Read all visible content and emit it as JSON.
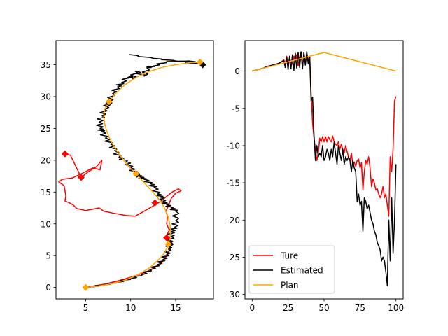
{
  "chart_data": [
    {
      "type": "line",
      "title": "",
      "xlabel": "",
      "ylabel": "",
      "xlim": [
        1.7,
        19.2
      ],
      "ylim": [
        -1.8,
        38.8
      ],
      "xticks": [
        5,
        10,
        15
      ],
      "yticks": [
        0,
        5,
        10,
        15,
        20,
        25,
        30,
        35
      ],
      "grid": false,
      "legend": "none",
      "series": [
        {
          "color": "#ff0000",
          "points": [
            [
              2.7,
              21.0
            ],
            [
              3.3,
              20.8
            ],
            [
              4.5,
              17.3
            ],
            [
              5.3,
              18.2
            ],
            [
              6.2,
              19.0
            ],
            [
              6.8,
              20.0
            ],
            [
              6.6,
              18.5
            ],
            [
              5.8,
              18.8
            ],
            [
              4.7,
              18.0
            ],
            [
              3.5,
              17.2
            ],
            [
              2.4,
              17.0
            ],
            [
              2.0,
              16.6
            ],
            [
              2.6,
              16.0
            ],
            [
              2.8,
              14.4
            ],
            [
              2.7,
              13.6
            ],
            [
              3.2,
              13.3
            ],
            [
              3.6,
              13.0
            ],
            [
              4.0,
              12.4
            ],
            [
              5.0,
              12.1
            ],
            [
              6.5,
              12.5
            ],
            [
              7.0,
              12.0
            ],
            [
              8.0,
              11.7
            ],
            [
              9.5,
              11.3
            ],
            [
              10.5,
              11.2
            ],
            [
              11.5,
              12.0
            ],
            [
              12.5,
              12.8
            ],
            [
              13.3,
              13.5
            ],
            [
              13.9,
              14.2
            ],
            [
              14.6,
              15.0
            ],
            [
              15.3,
              15.5
            ],
            [
              15.6,
              15.2
            ],
            [
              15.0,
              14.8
            ],
            [
              14.5,
              14.0
            ],
            [
              14.2,
              12.8
            ],
            [
              13.9,
              12.0
            ],
            [
              14.1,
              11.2
            ],
            [
              14.0,
              10.0
            ],
            [
              14.3,
              9.0
            ],
            [
              13.9,
              8.0
            ],
            [
              14.2,
              7.0
            ],
            [
              14.4,
              6.0
            ],
            [
              14.0,
              5.0
            ],
            [
              13.5,
              4.0
            ],
            [
              12.5,
              3.0
            ],
            [
              11.5,
              2.3
            ],
            [
              10.0,
              1.6
            ],
            [
              8.5,
              1.0
            ],
            [
              7.0,
              0.5
            ],
            [
              5.8,
              0.2
            ],
            [
              5.0,
              0.0
            ]
          ]
        },
        {
          "color": "#000000",
          "points": [
            [
              9.8,
              36.6
            ],
            [
              12.5,
              36.0
            ],
            [
              15.0,
              35.6
            ],
            [
              18.0,
              35.0
            ],
            [
              16.5,
              35.6
            ],
            [
              14.0,
              35.5
            ],
            [
              12.5,
              34.8
            ],
            [
              11.8,
              34.5
            ],
            [
              11.5,
              33.2
            ],
            [
              10.5,
              34.0
            ],
            [
              10.2,
              32.8
            ],
            [
              9.8,
              33.2
            ],
            [
              9.0,
              32.2
            ],
            [
              8.5,
              31.5
            ],
            [
              8.0,
              30.5
            ],
            [
              7.6,
              29.2
            ],
            [
              7.1,
              28.0
            ],
            [
              6.8,
              27.0
            ],
            [
              6.5,
              26.0
            ],
            [
              6.6,
              25.0
            ],
            [
              6.8,
              24.5
            ],
            [
              7.2,
              23.5
            ],
            [
              7.8,
              22.5
            ],
            [
              8.2,
              21.5
            ],
            [
              8.7,
              20.5
            ],
            [
              9.5,
              19.8
            ],
            [
              10.0,
              18.8
            ],
            [
              10.5,
              18.0
            ],
            [
              11.0,
              17.4
            ],
            [
              11.5,
              17.0
            ],
            [
              12.2,
              16.3
            ],
            [
              12.6,
              15.7
            ],
            [
              13.0,
              14.7
            ],
            [
              13.3,
              14.2
            ],
            [
              13.6,
              13.5
            ],
            [
              14.0,
              13.0
            ],
            [
              14.5,
              12.5
            ],
            [
              15.0,
              12.0
            ],
            [
              15.0,
              10.5
            ],
            [
              14.9,
              9.5
            ],
            [
              14.5,
              8.8
            ],
            [
              14.5,
              8.0
            ],
            [
              14.3,
              7.0
            ],
            [
              14.2,
              6.0
            ],
            [
              14.0,
              5.2
            ],
            [
              13.6,
              4.4
            ],
            [
              13.0,
              3.6
            ],
            [
              12.2,
              2.8
            ],
            [
              11.2,
              2.0
            ],
            [
              10.0,
              1.4
            ],
            [
              8.5,
              0.8
            ],
            [
              7.0,
              0.4
            ],
            [
              5.8,
              0.15
            ],
            [
              5.0,
              0.0
            ]
          ],
          "jitter": 0.35
        },
        {
          "color": "#ffa500",
          "points": [
            [
              5.0,
              0.0
            ],
            [
              6.5,
              0.25
            ],
            [
              8.0,
              0.6
            ],
            [
              9.5,
              1.2
            ],
            [
              10.8,
              2.0
            ],
            [
              12.0,
              3.0
            ],
            [
              13.0,
              4.2
            ],
            [
              13.8,
              5.5
            ],
            [
              14.2,
              6.8
            ],
            [
              14.4,
              8.2
            ],
            [
              14.4,
              9.6
            ],
            [
              14.2,
              11.0
            ],
            [
              13.8,
              12.4
            ],
            [
              13.3,
              13.6
            ],
            [
              12.6,
              14.8
            ],
            [
              11.8,
              16.0
            ],
            [
              10.6,
              17.9
            ],
            [
              9.8,
              19.0
            ],
            [
              9.0,
              20.4
            ],
            [
              8.2,
              22.0
            ],
            [
              7.6,
              23.6
            ],
            [
              7.2,
              25.2
            ],
            [
              7.0,
              26.8
            ],
            [
              7.1,
              28.0
            ],
            [
              7.6,
              29.2
            ],
            [
              8.4,
              30.6
            ],
            [
              9.4,
              31.9
            ],
            [
              10.6,
              33.0
            ],
            [
              12.0,
              33.9
            ],
            [
              13.5,
              34.6
            ],
            [
              15.0,
              35.0
            ],
            [
              16.5,
              35.3
            ],
            [
              17.7,
              35.4
            ]
          ]
        }
      ],
      "markers": [
        {
          "color": "#ff0000",
          "points": [
            [
              2.7,
              21.0
            ],
            [
              4.5,
              17.3
            ],
            [
              12.7,
              13.3
            ],
            [
              14.0,
              7.8
            ]
          ]
        },
        {
          "color": "#000000",
          "points": [
            [
              18.0,
              35.0
            ],
            [
              7.6,
              29.0
            ],
            [
              10.7,
              17.8
            ],
            [
              14.4,
              6.8
            ]
          ]
        },
        {
          "color": "#ffa500",
          "points": [
            [
              5.0,
              0.0
            ],
            [
              14.2,
              6.8
            ],
            [
              10.6,
              17.9
            ],
            [
              7.6,
              29.2
            ],
            [
              17.7,
              35.4
            ]
          ]
        }
      ]
    },
    {
      "type": "line",
      "title": "",
      "xlabel": "",
      "ylabel": "",
      "xlim": [
        -5,
        105
      ],
      "ylim": [
        -30.6,
        4.1
      ],
      "xticks": [
        0,
        25,
        50,
        75,
        100
      ],
      "yticks": [
        -30,
        -25,
        -20,
        -15,
        -10,
        -5,
        0
      ],
      "grid": false,
      "legend": "lower-left",
      "series": [
        {
          "name": "Ture",
          "color": "#ff0000",
          "x": [
            0,
            2,
            4,
            6,
            8,
            10,
            12,
            14,
            16,
            18,
            20,
            22,
            23,
            24,
            25,
            26,
            27,
            28,
            29,
            30,
            31,
            32,
            33,
            34,
            35,
            36,
            37,
            38,
            39,
            40,
            41,
            42,
            43,
            44,
            45,
            46,
            47,
            48,
            49,
            50,
            51,
            52,
            53,
            54,
            55,
            56,
            57,
            58,
            59,
            60,
            61,
            62,
            63,
            64,
            65,
            66,
            67,
            68,
            69,
            70,
            71,
            72,
            73,
            74,
            75,
            76,
            77,
            78,
            79,
            80,
            81,
            82,
            83,
            84,
            85,
            86,
            87,
            88,
            89,
            90,
            91,
            92,
            93,
            94,
            95,
            96,
            97,
            98,
            99,
            100
          ],
          "y": [
            0,
            0.1,
            0.2,
            0.3,
            0.4,
            0.6,
            0.7,
            0.8,
            0.9,
            1.0,
            1.2,
            1.5,
            1.0,
            2.0,
            0.8,
            1.7,
            1.3,
            0.9,
            2.0,
            1.2,
            2.2,
            0.7,
            1.8,
            2.4,
            0.6,
            2.5,
            1.0,
            2.3,
            1.5,
            2.0,
            -3.0,
            -7.0,
            -9.0,
            -10.5,
            -12.0,
            -11.0,
            -9.0,
            -9.5,
            -8.8,
            -9.5,
            -8.8,
            -9.5,
            -8.8,
            -9.2,
            -9.5,
            -8.7,
            -9.5,
            -9.8,
            -10.0,
            -9.5,
            -10.5,
            -9.8,
            -10.5,
            -11.0,
            -10.0,
            -10.8,
            -11.5,
            -12.0,
            -11.0,
            -12.5,
            -12.2,
            -12.8,
            -12.0,
            -11.8,
            -13.0,
            -12.3,
            -16.0,
            -13.5,
            -12.0,
            -12.5,
            -11.5,
            -13.0,
            -15.5,
            -14.5,
            -15.0,
            -16.0,
            -15.8,
            -16.5,
            -17.0,
            -16.5,
            -15.5,
            -17.0,
            -16.5,
            -18.0,
            -19.5,
            -11.5,
            -13.5,
            -10.5,
            -4.0,
            -3.4
          ]
        },
        {
          "name": "Estimated",
          "color": "#000000",
          "x": [
            0,
            2,
            4,
            6,
            8,
            10,
            12,
            14,
            16,
            18,
            20,
            22,
            23,
            24,
            25,
            26,
            27,
            28,
            29,
            30,
            31,
            32,
            33,
            34,
            35,
            36,
            37,
            38,
            39,
            40,
            41,
            42,
            43,
            44,
            45,
            46,
            47,
            48,
            49,
            50,
            51,
            52,
            53,
            54,
            55,
            56,
            57,
            58,
            59,
            60,
            61,
            62,
            63,
            64,
            65,
            66,
            67,
            68,
            69,
            70,
            71,
            72,
            73,
            74,
            75,
            76,
            77,
            78,
            79,
            80,
            81,
            82,
            83,
            84,
            85,
            86,
            87,
            88,
            89,
            90,
            91,
            92,
            93,
            94,
            95,
            96,
            97,
            98,
            99,
            100
          ],
          "y": [
            0,
            0.1,
            0.2,
            0.3,
            0.4,
            0.6,
            0.7,
            0.8,
            0.9,
            1.0,
            1.2,
            1.4,
            0.5,
            1.8,
            0.2,
            2.0,
            0.3,
            2.2,
            0.1,
            2.4,
            0.4,
            2.5,
            0.5,
            2.6,
            0.3,
            2.5,
            0.8,
            2.6,
            1.0,
            2.0,
            -4.0,
            -3.5,
            -8.5,
            -12.0,
            -10.0,
            -11.5,
            -11.0,
            -11.5,
            -10.0,
            -12.0,
            -11.5,
            -10.5,
            -11.0,
            -12.0,
            -10.5,
            -11.5,
            -9.5,
            -11.0,
            -12.5,
            -10.0,
            -11.0,
            -12.0,
            -10.5,
            -12.5,
            -11.5,
            -12.0,
            -11.5,
            -12.0,
            -13.5,
            -12.0,
            -13.0,
            -13.5,
            -17.5,
            -16.5,
            -18.0,
            -17.5,
            -21.5,
            -17.0,
            -17.5,
            -18.5,
            -18.0,
            -19.0,
            -20.0,
            -20.5,
            -21.5,
            -22.0,
            -23.0,
            -23.5,
            -24.0,
            -25.5,
            -25.0,
            -25.5,
            -27.0,
            -28.8,
            -20.0,
            -25.5,
            -17.0,
            -24.5,
            -20.0,
            -12.5
          ]
        },
        {
          "name": "Plan",
          "color": "#ffa500",
          "x": [
            0,
            50,
            100
          ],
          "y": [
            0,
            2.5,
            0
          ]
        }
      ]
    }
  ]
}
